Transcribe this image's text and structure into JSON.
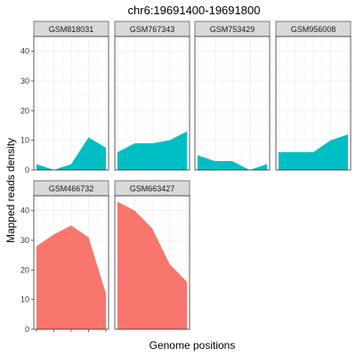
{
  "chart_data": {
    "type": "area",
    "title": "chr6:19691400-19691800",
    "xlabel": "Genome positions",
    "ylabel": "Mapped reads density",
    "ylim": [
      0,
      45
    ],
    "y_ticks": [
      0,
      10,
      20,
      30,
      40
    ],
    "x_tick_count": 5,
    "grid": true,
    "facet_layout": "4 columns, 2 rows",
    "colors": {
      "group_a": "#00BFC4",
      "group_b": "#F8766D",
      "strip_bg": "#D9D9D9",
      "grid": "#EBEBEB",
      "border": "#333333"
    },
    "panels": [
      {
        "name": "GSM818031",
        "fill": "#00BFC4",
        "x": [
          1,
          2,
          3,
          4,
          5
        ],
        "values": [
          2,
          0,
          2,
          11,
          7.5
        ]
      },
      {
        "name": "GSM767343",
        "fill": "#00BFC4",
        "x": [
          1,
          2,
          3,
          4,
          5
        ],
        "values": [
          6,
          9,
          9,
          10,
          13
        ]
      },
      {
        "name": "GSM753429",
        "fill": "#00BFC4",
        "x": [
          1,
          2,
          3,
          4,
          5
        ],
        "values": [
          5,
          3,
          3,
          0,
          2
        ]
      },
      {
        "name": "GSM956008",
        "fill": "#00BFC4",
        "x": [
          1,
          2,
          3,
          4,
          5
        ],
        "values": [
          6,
          6,
          6,
          10,
          12
        ]
      },
      {
        "name": "GSM466732",
        "fill": "#F8766D",
        "x": [
          1,
          2,
          3,
          4,
          5
        ],
        "values": [
          28,
          32,
          35,
          31,
          12
        ]
      },
      {
        "name": "GSM663427",
        "fill": "#F8766D",
        "x": [
          1,
          2,
          3,
          4,
          5
        ],
        "values": [
          43,
          40,
          34,
          22,
          16
        ]
      }
    ]
  }
}
